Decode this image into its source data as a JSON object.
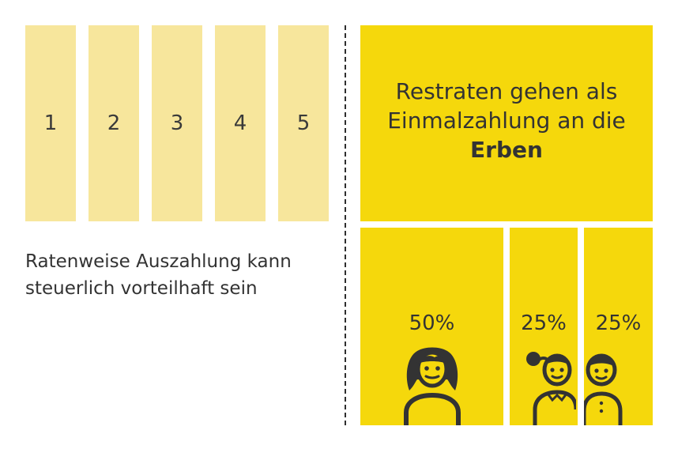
{
  "rates": {
    "items": [
      "1",
      "2",
      "3",
      "4",
      "5"
    ],
    "caption_line1": "Ratenweise Auszahlung kann",
    "caption_line2": "steuerlich vorteilhaft sein"
  },
  "heirs_panel": {
    "line1": "Restraten gehen als",
    "line2": "Einmalzahlung an die",
    "line3_bold": "Erben",
    "shares": [
      "50%",
      "25%",
      "25%"
    ]
  },
  "colors": {
    "rate_box": "#f7e69c",
    "accent_yellow": "#f5d80c",
    "text": "#333333"
  }
}
